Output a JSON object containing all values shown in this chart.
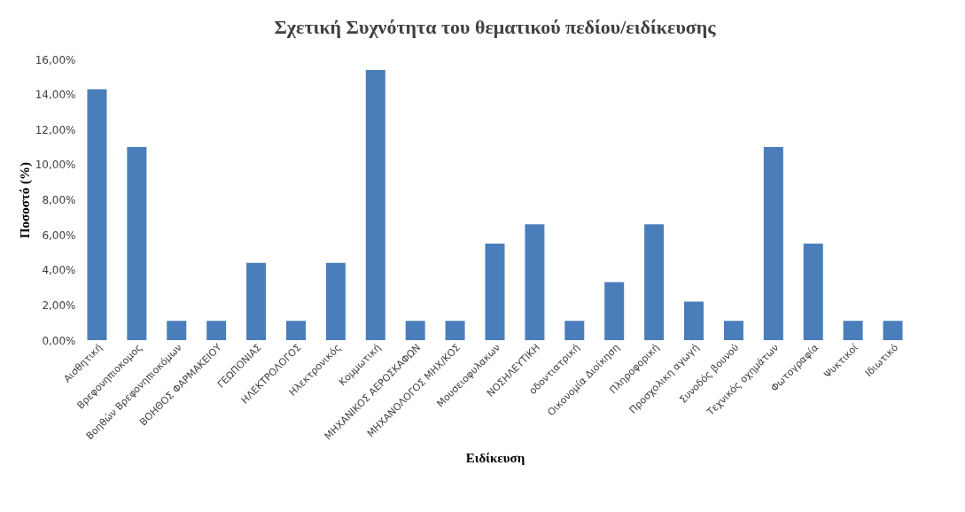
{
  "chart_data": {
    "type": "bar",
    "title": "Σχετική Συχνότητα του θεματικού πεδίου/ειδίκευσης",
    "xlabel": "Ειδίκευση",
    "ylabel": "Ποσοστό (%)",
    "categories": [
      "Αισθητική",
      "Βρεφονηπιοκομος",
      "Βοηθών Βρεφονηπιοκόμων",
      "ΒΟΗΘΟΣ ΦΑΡΜΑΚΕΙΟΥ",
      "ΓΕΩΠΟΝΙΑΣ",
      "ΗΛΕΚΤΡΟΛΟΓΟΣ",
      "Ηλεκτρονικός",
      "Κομμωτική",
      "ΜΗΧΑΝΙΚΟΣ ΑΕΡΟΣΚΑΦΩΝ",
      "ΜΗΧΑΝΟΛΟΓΟΣ ΜΗΧ/ΚΟΣ",
      "Μουσειοφυλακων",
      "ΝΟΣΗΛΕΥΤΙΚΗ",
      "οδοντιατρική",
      "Οικονομία Διοίκηση",
      "Πληροφορική",
      "Προσχολικη αγωγή",
      "Συνοδός βουνού",
      "Τεχνικός οχημάτων",
      "Φωτογραφία",
      "Ψυκτικοί",
      "Ιδιωτικό"
    ],
    "series": [
      {
        "color": "#4a7ebb",
        "values": [
          14.3,
          11.0,
          1.1,
          1.1,
          4.4,
          1.1,
          4.4,
          15.4,
          1.1,
          1.1,
          5.5,
          6.6,
          1.1,
          3.3,
          6.6,
          2.2,
          1.1,
          11.0,
          5.5,
          1.1,
          1.1
        ]
      }
    ],
    "ylim": [
      0,
      16
    ],
    "yticks": [
      {
        "value": 0,
        "label": "0,00%"
      },
      {
        "value": 2,
        "label": "2,00%"
      },
      {
        "value": 4,
        "label": "4,00%"
      },
      {
        "value": 6,
        "label": "6,00%"
      },
      {
        "value": 8,
        "label": "8,00%"
      },
      {
        "value": 10,
        "label": "10,00%"
      },
      {
        "value": 12,
        "label": "12,00%"
      },
      {
        "value": 14,
        "label": "14,00%"
      },
      {
        "value": 16,
        "label": "16,00%"
      }
    ],
    "grid": false,
    "legend": false
  }
}
